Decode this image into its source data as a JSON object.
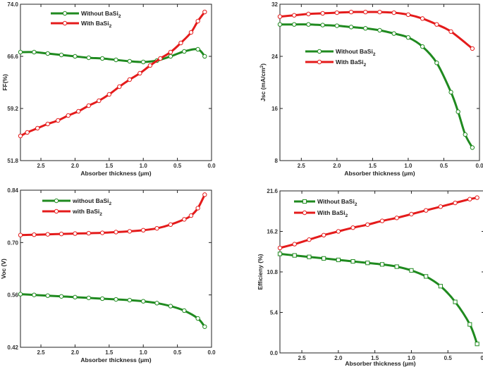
{
  "chart_data": [
    {
      "type": "line",
      "id": "ff",
      "xlabel": "Absorber thickness (μm)",
      "ylabel": "FF(%)",
      "xlim": [
        2.8,
        0.0
      ],
      "ylim": [
        51.8,
        74.0
      ],
      "xticks": [
        2.5,
        2.0,
        1.5,
        1.0,
        0.5,
        0.0
      ],
      "xtick_labels": [
        "2.5",
        "2.0",
        "1.5",
        "1.0",
        "0.5",
        "0.0"
      ],
      "yticks": [
        51.8,
        59.2,
        66.6,
        74.0
      ],
      "ytick_labels": [
        "51.8",
        "59.2",
        "66.6",
        "74.0"
      ],
      "legend_position": "top-left",
      "series": [
        {
          "name": "Without BaSi",
          "subscript": "2",
          "color": "#1f8a1f",
          "marker": "circle",
          "x": [
            2.8,
            2.6,
            2.4,
            2.2,
            2.0,
            1.8,
            1.6,
            1.4,
            1.2,
            1.0,
            0.8,
            0.6,
            0.4,
            0.2,
            0.1
          ],
          "y": [
            67.2,
            67.2,
            67.0,
            66.8,
            66.6,
            66.4,
            66.3,
            66.1,
            65.9,
            65.8,
            66.0,
            66.6,
            67.3,
            67.6,
            66.6
          ]
        },
        {
          "name": "With BaSi",
          "subscript": "2",
          "color": "#e41b1b",
          "marker": "circle",
          "x": [
            2.8,
            2.7,
            2.55,
            2.4,
            2.25,
            2.1,
            1.95,
            1.8,
            1.65,
            1.5,
            1.35,
            1.2,
            1.05,
            0.9,
            0.75,
            0.6,
            0.45,
            0.3,
            0.2,
            0.1
          ],
          "y": [
            55.3,
            55.8,
            56.4,
            57.0,
            57.5,
            58.2,
            58.8,
            59.6,
            60.3,
            61.2,
            62.3,
            63.3,
            64.2,
            65.3,
            66.3,
            67.2,
            68.5,
            70.0,
            71.6,
            72.9
          ]
        }
      ]
    },
    {
      "type": "line",
      "id": "jsc",
      "xlabel": "Absorber thickness (μm)",
      "ylabel": "Jsc (mA/cm",
      "ylabel_sup": "2",
      "ylabel_end": ")",
      "xlim": [
        2.8,
        0.0
      ],
      "ylim": [
        8,
        32
      ],
      "xticks": [
        2.5,
        2.0,
        1.5,
        1.0,
        0.5,
        0.0
      ],
      "xtick_labels": [
        "2.5",
        "2.0",
        "1.5",
        "1.0",
        "0.5",
        "0.0"
      ],
      "yticks": [
        8,
        16,
        24,
        32
      ],
      "ytick_labels": [
        "8",
        "16",
        "24",
        "32"
      ],
      "legend_position": "center-left",
      "series": [
        {
          "name": "Without BaSi",
          "subscript": "2",
          "color": "#1f8a1f",
          "marker": "circle",
          "x": [
            2.8,
            2.6,
            2.4,
            2.2,
            2.0,
            1.8,
            1.6,
            1.4,
            1.2,
            1.0,
            0.8,
            0.6,
            0.4,
            0.3,
            0.2,
            0.1
          ],
          "y": [
            28.9,
            28.9,
            28.9,
            28.8,
            28.7,
            28.5,
            28.3,
            28.0,
            27.5,
            26.9,
            25.5,
            23.0,
            18.5,
            15.5,
            12.0,
            10.0
          ]
        },
        {
          "name": "With BaSi",
          "subscript": "2",
          "color": "#e41b1b",
          "marker": "circle",
          "x": [
            2.8,
            2.6,
            2.4,
            2.2,
            2.0,
            1.8,
            1.6,
            1.4,
            1.2,
            1.0,
            0.8,
            0.6,
            0.4,
            0.1
          ],
          "y": [
            30.1,
            30.3,
            30.5,
            30.6,
            30.7,
            30.8,
            30.8,
            30.8,
            30.7,
            30.4,
            29.8,
            28.9,
            27.8,
            25.2
          ]
        }
      ]
    },
    {
      "type": "line",
      "id": "voc",
      "xlabel": "Absorber thickness (μm)",
      "ylabel": "Voc (V)",
      "xlim": [
        2.8,
        0.0
      ],
      "ylim": [
        0.42,
        0.84
      ],
      "xticks": [
        2.5,
        2.0,
        1.5,
        1.0,
        0.5,
        0.0
      ],
      "xtick_labels": [
        "2.5",
        "2.0",
        "1.5",
        "1.0",
        "0.5",
        "0.0"
      ],
      "yticks": [
        0.42,
        0.56,
        0.7,
        0.84
      ],
      "ytick_labels": [
        "0.42",
        "0.56",
        "0.70",
        "0.84"
      ],
      "legend_position": "top-left",
      "series": [
        {
          "name": "without BaSi",
          "subscript": "2",
          "color": "#1f8a1f",
          "marker": "circle",
          "x": [
            2.8,
            2.6,
            2.4,
            2.2,
            2.0,
            1.8,
            1.6,
            1.4,
            1.2,
            1.0,
            0.8,
            0.6,
            0.4,
            0.2,
            0.1
          ],
          "y": [
            0.562,
            0.56,
            0.558,
            0.556,
            0.554,
            0.552,
            0.55,
            0.548,
            0.546,
            0.543,
            0.538,
            0.53,
            0.518,
            0.497,
            0.475
          ]
        },
        {
          "name": "with BaSi",
          "subscript": "2",
          "color": "#e41b1b",
          "marker": "circle",
          "x": [
            2.8,
            2.6,
            2.4,
            2.2,
            2.0,
            1.8,
            1.6,
            1.4,
            1.2,
            1.0,
            0.8,
            0.6,
            0.4,
            0.3,
            0.2,
            0.1
          ],
          "y": [
            0.72,
            0.721,
            0.722,
            0.723,
            0.724,
            0.725,
            0.726,
            0.728,
            0.73,
            0.733,
            0.738,
            0.748,
            0.762,
            0.772,
            0.792,
            0.828
          ]
        }
      ]
    },
    {
      "type": "line",
      "id": "eff",
      "xlabel": "Absorber thickness (μm)",
      "ylabel": "Efficieny (%)",
      "xlim": [
        2.8,
        0.0
      ],
      "ylim": [
        0.0,
        21.6
      ],
      "xticks": [
        2.5,
        2.0,
        1.5,
        1.0,
        0.5,
        0.0
      ],
      "xtick_labels": [
        "2.5",
        "2.0",
        "1.5",
        "1.0",
        "0.5",
        "0.0"
      ],
      "yticks": [
        0.0,
        5.4,
        10.8,
        16.2,
        21.6
      ],
      "ytick_labels": [
        "0.0",
        "5.4",
        "10.8",
        "16.2",
        "21.6"
      ],
      "legend_position": "top-left",
      "series": [
        {
          "name": "Without BaSi",
          "subscript": "2",
          "color": "#1f8a1f",
          "marker": "square",
          "x": [
            2.8,
            2.6,
            2.4,
            2.2,
            2.0,
            1.8,
            1.6,
            1.4,
            1.2,
            1.0,
            0.8,
            0.6,
            0.4,
            0.2,
            0.1
          ],
          "y": [
            13.2,
            13.0,
            12.8,
            12.6,
            12.4,
            12.2,
            12.0,
            11.8,
            11.5,
            11.0,
            10.2,
            8.9,
            6.8,
            3.8,
            1.2
          ]
        },
        {
          "name": "With BaSi",
          "subscript": "2",
          "color": "#e41b1b",
          "marker": "circle",
          "x": [
            2.8,
            2.6,
            2.4,
            2.2,
            2.0,
            1.8,
            1.6,
            1.4,
            1.2,
            1.0,
            0.8,
            0.6,
            0.4,
            0.2,
            0.1
          ],
          "y": [
            14.0,
            14.5,
            15.1,
            15.7,
            16.2,
            16.7,
            17.1,
            17.6,
            18.0,
            18.5,
            19.0,
            19.5,
            20.0,
            20.5,
            20.7
          ]
        }
      ]
    }
  ]
}
